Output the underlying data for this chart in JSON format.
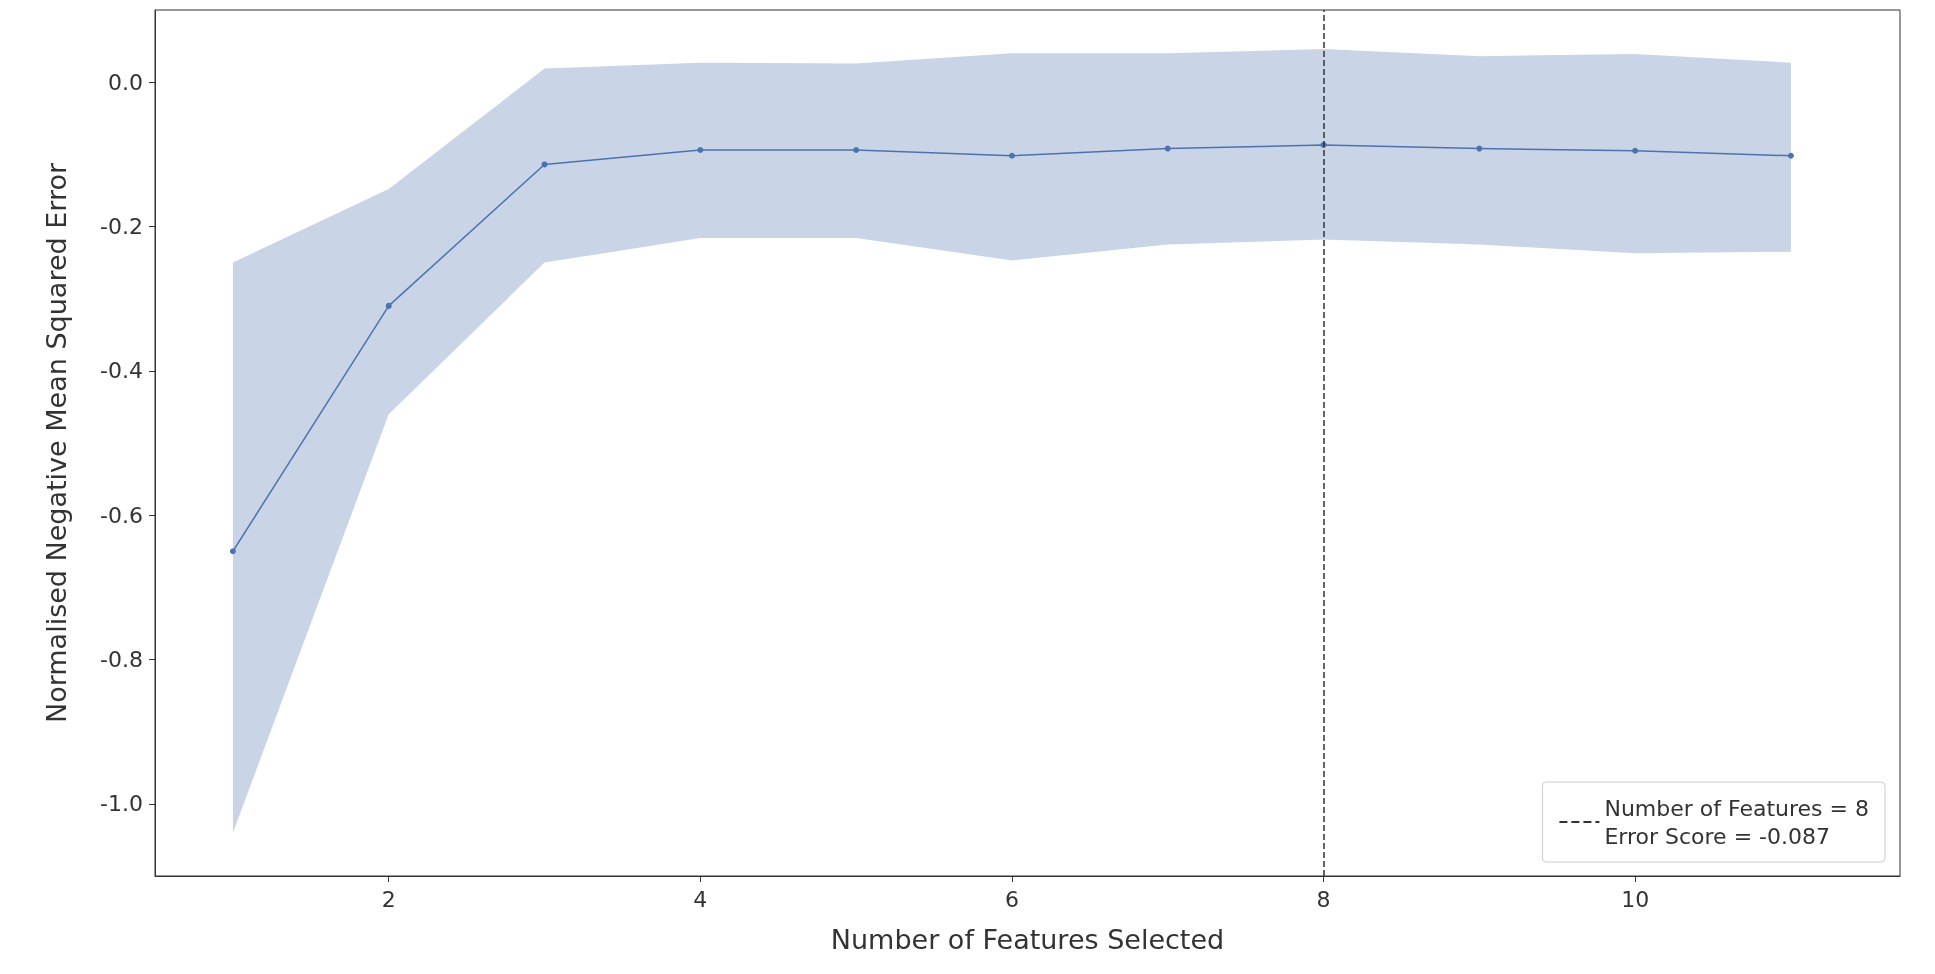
{
  "chart_data": {
    "type": "line",
    "xlabel": "Number of Features Selected",
    "ylabel": "Normalised Negative Mean Squared Error",
    "x": [
      1,
      2,
      3,
      4,
      5,
      6,
      7,
      8,
      9,
      10,
      11
    ],
    "series": [
      {
        "color": "#4c72b0",
        "values": [
          -0.65,
          -0.31,
          -0.114,
          -0.094,
          -0.094,
          -0.102,
          -0.092,
          -0.087,
          -0.092,
          -0.095,
          -0.102
        ],
        "lower": [
          -1.04,
          -0.46,
          -0.25,
          -0.216,
          -0.216,
          -0.247,
          -0.225,
          -0.218,
          -0.225,
          -0.237,
          -0.235
        ],
        "upper": [
          -0.25,
          -0.148,
          0.019,
          0.027,
          0.026,
          0.04,
          0.04,
          0.046,
          0.036,
          0.039,
          0.027
        ]
      }
    ],
    "xlim": [
      0.5,
      11.7
    ],
    "xticks": [
      2,
      4,
      6,
      8,
      10
    ],
    "ylim": [
      -1.1,
      0.1
    ],
    "yticks": [
      {
        "value": -1,
        "label": "-1.0"
      },
      {
        "value": -0.8,
        "label": "-0.8"
      },
      {
        "value": -0.6,
        "label": "-0.6"
      },
      {
        "value": -0.4,
        "label": "-0.4"
      },
      {
        "value": -0.2,
        "label": "-0.2"
      },
      {
        "value": 0,
        "label": "0.0"
      }
    ],
    "ref_lines": [
      {
        "axis": "x",
        "value": 8,
        "label": "Number of Features = 8\nError Score = -0.087",
        "color": "#333333",
        "line_style": "dashed"
      }
    ],
    "marker": "circle",
    "line_style": "solid",
    "grid": false,
    "legend": "bottom right"
  }
}
